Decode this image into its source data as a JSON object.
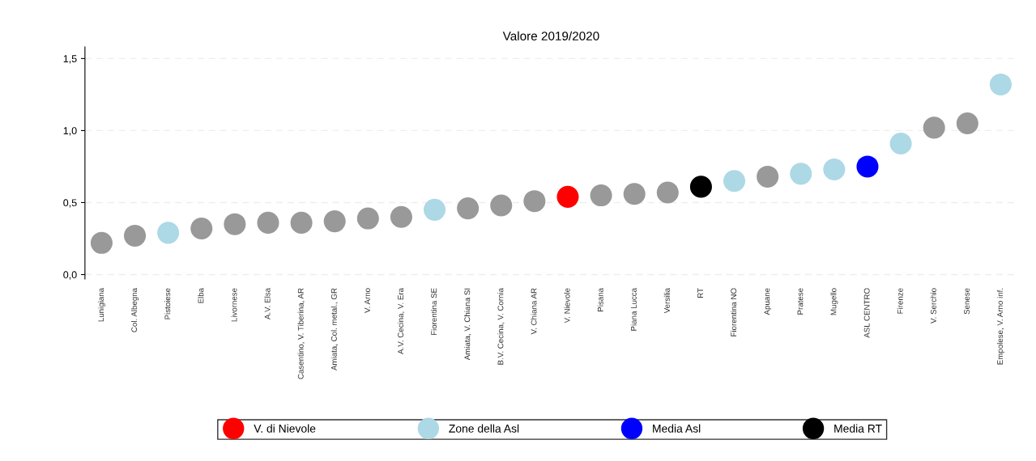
{
  "chart_data": {
    "type": "scatter",
    "title": "Valore 2019/2020",
    "categories": [
      "Lunigiana",
      "Col. Albegna",
      "Pistoiese",
      "Elba",
      "Livornese",
      "A.V. Elsa",
      "Casentino, V. Tiberina, AR",
      "Amiata, Col. metal., GR",
      "V. Arno",
      "A.V. Cecina, V. Era",
      "Fiorentina SE",
      "Amiata, V. Chiana SI",
      "B.V. Cecina, V. Cornia",
      "V. Chiana AR",
      "V. Nievole",
      "Pisana",
      "Piana Lucca",
      "Versilia",
      "RT",
      "Fiorentina NO",
      "Apuane",
      "Pratese",
      "Mugello",
      "ASL CENTRO",
      "Firenze",
      "V. Serchio",
      "Senese",
      "Empolese, V. Arno inf."
    ],
    "series": [
      {
        "color": "#999999",
        "values": [
          0.22,
          0.27,
          null,
          0.32,
          0.35,
          0.36,
          0.36,
          0.37,
          0.39,
          0.4,
          null,
          0.46,
          0.48,
          0.51,
          null,
          0.55,
          0.56,
          0.57,
          null,
          null,
          0.68,
          null,
          null,
          null,
          null,
          1.02,
          1.05,
          null
        ]
      },
      {
        "name": "V. di Nievole",
        "color": "#ff0000",
        "values": [
          null,
          null,
          null,
          null,
          null,
          null,
          null,
          null,
          null,
          null,
          null,
          null,
          null,
          null,
          0.54,
          null,
          null,
          null,
          null,
          null,
          null,
          null,
          null,
          null,
          null,
          null,
          null,
          null
        ]
      },
      {
        "name": "Zone della Asl",
        "color": "#add8e6",
        "values": [
          null,
          null,
          0.29,
          null,
          null,
          null,
          null,
          null,
          null,
          null,
          0.45,
          null,
          null,
          null,
          null,
          null,
          null,
          null,
          null,
          0.65,
          null,
          0.7,
          0.73,
          null,
          0.91,
          null,
          null,
          1.32
        ]
      },
      {
        "name": "Media Asl",
        "color": "#0000ff",
        "values": [
          null,
          null,
          null,
          null,
          null,
          null,
          null,
          null,
          null,
          null,
          null,
          null,
          null,
          null,
          null,
          null,
          null,
          null,
          null,
          null,
          null,
          null,
          null,
          0.75,
          null,
          null,
          null,
          null
        ]
      },
      {
        "name": "Media RT",
        "color": "#000000",
        "values": [
          null,
          null,
          null,
          null,
          null,
          null,
          null,
          null,
          null,
          null,
          null,
          null,
          null,
          null,
          null,
          null,
          null,
          null,
          0.61,
          null,
          null,
          null,
          null,
          null,
          null,
          null,
          null,
          null
        ]
      }
    ],
    "ylim": [
      -0.03,
      1.58
    ],
    "yticks": [
      {
        "value": 0,
        "label": "0,0"
      },
      {
        "value": 0.5,
        "label": "0,5"
      },
      {
        "value": 1.0,
        "label": "1,0"
      },
      {
        "value": 1.5,
        "label": "1,5"
      }
    ],
    "grid": "y",
    "legend": "bottom",
    "marker": "circle"
  }
}
